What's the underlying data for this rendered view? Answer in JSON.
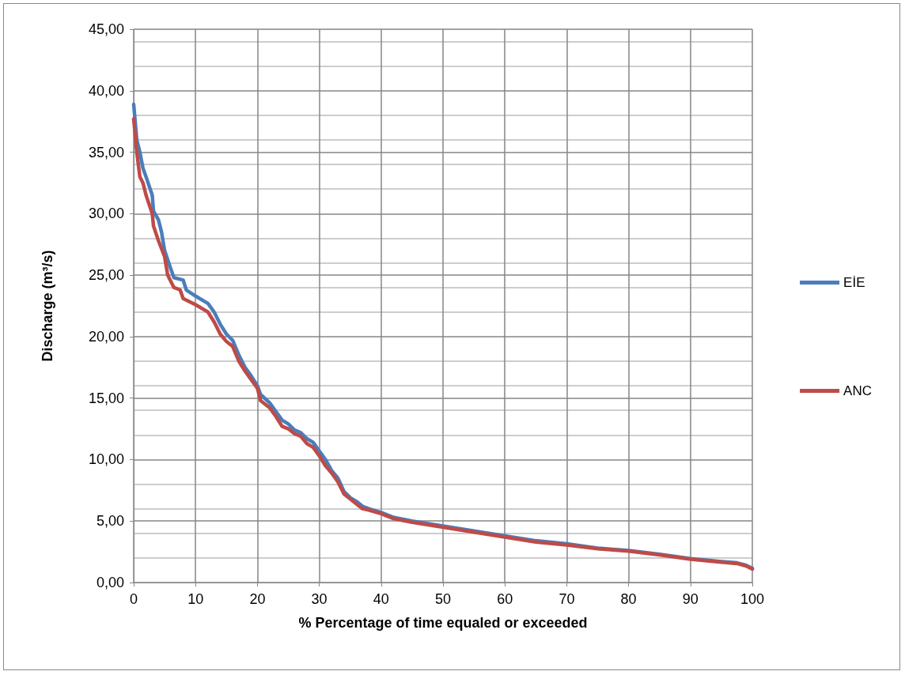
{
  "chart_data": {
    "type": "line",
    "xlabel": "% Percentage of time equaled or exceeded",
    "ylabel": "Discharge (m³/s)",
    "xlim": [
      0,
      100
    ],
    "xticks": [
      0,
      10,
      20,
      30,
      40,
      50,
      60,
      70,
      80,
      90,
      100
    ],
    "ylim": [
      0,
      45
    ],
    "yticks": [
      {
        "value": 0,
        "label": "0,00"
      },
      {
        "value": 5,
        "label": "5,00"
      },
      {
        "value": 10,
        "label": "10,00"
      },
      {
        "value": 15,
        "label": "15,00"
      },
      {
        "value": 20,
        "label": "20,00"
      },
      {
        "value": 25,
        "label": "25,00"
      },
      {
        "value": 30,
        "label": "30,00"
      },
      {
        "value": 35,
        "label": "35,00"
      },
      {
        "value": 40,
        "label": "40,00"
      },
      {
        "value": 45,
        "label": "45,00"
      }
    ],
    "grid": true,
    "legend": "right",
    "marker": "none",
    "line_style": "solid",
    "series": [
      {
        "name": "EİE",
        "color": "#4a7ebb",
        "x": [
          0,
          0.5,
          1,
          1.5,
          2,
          3,
          3.2,
          4,
          4.5,
          5,
          6,
          6.5,
          8,
          8.5,
          10,
          12,
          13,
          14,
          15,
          16,
          17,
          18,
          19,
          20,
          20.5,
          22,
          23,
          24,
          25,
          26,
          27,
          28,
          29,
          30,
          31,
          32,
          33,
          34,
          35,
          36,
          37,
          38,
          40,
          42,
          45,
          50,
          55,
          60,
          65,
          70,
          75,
          80,
          85,
          90,
          95,
          97.5,
          99,
          100
        ],
        "values": [
          38.9,
          36,
          35,
          33.7,
          33,
          31.5,
          30.2,
          29.5,
          28.5,
          27,
          25.5,
          24.8,
          24.6,
          23.8,
          23.3,
          22.7,
          22,
          21,
          20.2,
          19.7,
          18.5,
          17.5,
          16.8,
          16,
          15.3,
          14.6,
          13.9,
          13.2,
          12.9,
          12.4,
          12.2,
          11.7,
          11.4,
          10.7,
          10,
          9.1,
          8.5,
          7.4,
          6.9,
          6.6,
          6.2,
          6,
          5.7,
          5.3,
          5,
          4.6,
          4.2,
          3.8,
          3.4,
          3.15,
          2.8,
          2.6,
          2.3,
          1.95,
          1.7,
          1.6,
          1.4,
          1.15
        ]
      },
      {
        "name": "ANC",
        "color": "#be4b48",
        "x": [
          0,
          0.5,
          1,
          1.5,
          2,
          3,
          3.2,
          4,
          5,
          5.5,
          6,
          6.5,
          7.5,
          8,
          10,
          12,
          13,
          14,
          15,
          16,
          17,
          18,
          19,
          20,
          20.5,
          22,
          23,
          24,
          25,
          26,
          27,
          28,
          29,
          30,
          31,
          32,
          33,
          34,
          35,
          36,
          37,
          38,
          40,
          42,
          45,
          50,
          55,
          60,
          65,
          70,
          75,
          80,
          85,
          90,
          95,
          97.5,
          99,
          100
        ],
        "values": [
          37.7,
          35,
          33,
          32.5,
          31.5,
          30,
          29,
          27.8,
          26.5,
          25,
          24.5,
          24,
          23.8,
          23.1,
          22.6,
          22,
          21.2,
          20.2,
          19.6,
          19.2,
          18,
          17.2,
          16.5,
          15.8,
          14.8,
          14.2,
          13.5,
          12.7,
          12.5,
          12.1,
          11.9,
          11.3,
          11,
          10.3,
          9.5,
          8.9,
          8.2,
          7.2,
          6.8,
          6.4,
          6,
          5.9,
          5.6,
          5.2,
          4.9,
          4.5,
          4.1,
          3.7,
          3.3,
          3.05,
          2.75,
          2.55,
          2.25,
          1.9,
          1.65,
          1.55,
          1.35,
          1.1
        ]
      }
    ]
  }
}
